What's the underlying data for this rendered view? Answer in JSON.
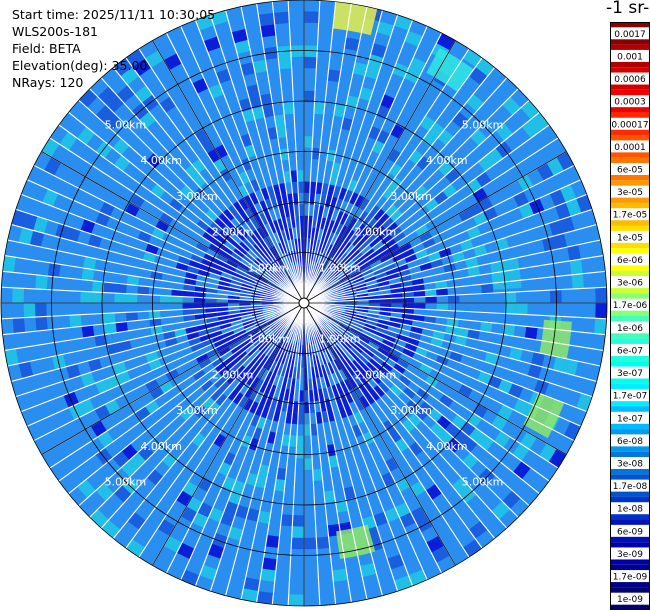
{
  "meta": {
    "start_time": "Start time: 2025/11/11 10:30:05",
    "instrument": "WLS200s-181",
    "field": "Field: BETA",
    "elevation": "Elevation(deg): 35.00",
    "nrays": "NRays: 120"
  },
  "colorbar": {
    "title_fragment": "-1 sr-",
    "labels": [
      "0.0017",
      "0.001",
      "0.0006",
      "0.0003",
      "0.00017",
      "0.0001",
      "6e-05",
      "3e-05",
      "1.7e-05",
      "1e-05",
      "6e-06",
      "3e-06",
      "1.7e-06",
      "1e-06",
      "6e-07",
      "3e-07",
      "1.7e-07",
      "1e-07",
      "6e-08",
      "3e-08",
      "1.7e-08",
      "1e-08",
      "6e-09",
      "3e-09",
      "1.7e-09",
      "1e-09"
    ],
    "colors": [
      "#8b0000",
      "#b00000",
      "#d40000",
      "#f20000",
      "#ff2a00",
      "#ff5500",
      "#ff7700",
      "#ff9900",
      "#ffbb00",
      "#ffdd00",
      "#ffff00",
      "#ccff33",
      "#88ff77",
      "#44ffbb",
      "#22ffdd",
      "#00ffee",
      "#00eeff",
      "#00bbff",
      "#0099ee",
      "#0077dd",
      "#0055cc",
      "#0033cc",
      "#0011bb",
      "#0000aa",
      "#000088",
      "#00006e"
    ]
  },
  "chart_data": {
    "type": "heatmap",
    "projection": "polar-ppi",
    "nrays": 120,
    "range_unit": "km",
    "max_range_km": 6.0,
    "rings_km": [
      1,
      2,
      3,
      4,
      5,
      6
    ],
    "ring_labels": [
      "1.00km",
      "2.00km",
      "3.00km",
      "4.00km",
      "5.00km"
    ],
    "spoke_angles_deg": [
      0,
      30,
      60,
      90,
      120,
      150,
      180,
      210,
      240,
      270,
      300,
      330
    ],
    "dominant_value": "6e-08",
    "colors": {
      "background": "#2a8ef0",
      "light": "#21bfe8",
      "cyan": "#2fe8e0",
      "green": "#8ee86a",
      "yellow": "#e8f04a",
      "blue": "#1a5ee0",
      "deep": "#0a1ed8"
    },
    "hotspots": [
      {
        "azimuth_deg": 10,
        "range_km": 5.9,
        "color": "yellow"
      },
      {
        "azimuth_deg": 32,
        "range_km": 5.6,
        "color": "cyan"
      },
      {
        "azimuth_deg": 82,
        "range_km": 4.2,
        "color": "light"
      },
      {
        "azimuth_deg": 98,
        "range_km": 5.2,
        "color": "green"
      },
      {
        "azimuth_deg": 115,
        "range_km": 5.4,
        "color": "green"
      },
      {
        "azimuth_deg": 168,
        "range_km": 5.0,
        "color": "green"
      }
    ]
  }
}
